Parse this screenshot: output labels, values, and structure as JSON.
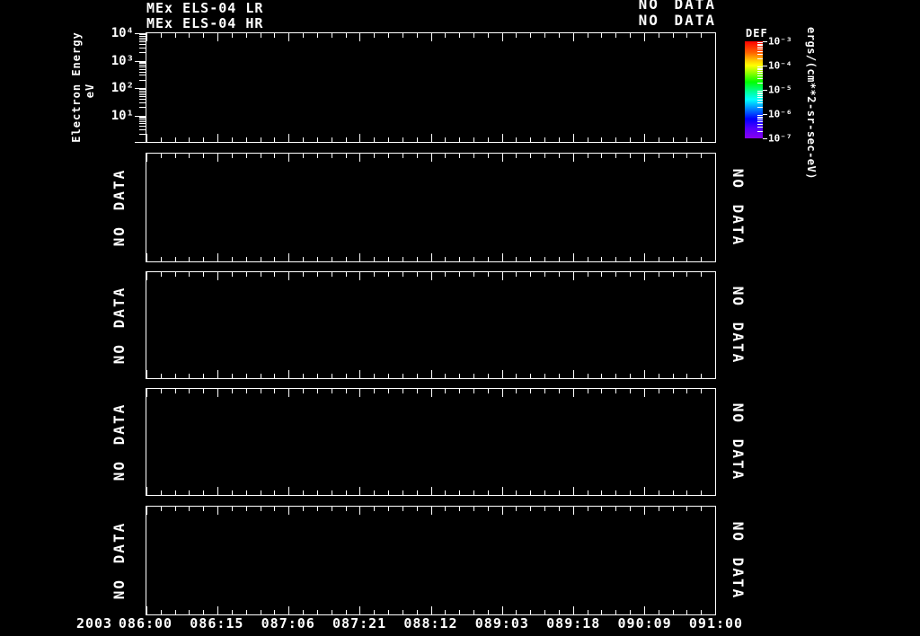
{
  "header": {
    "titles": [
      "MEx ELS-04 LR",
      "MEx ELS-04 HR"
    ],
    "statuses": [
      "NO DATA",
      "NO DATA"
    ]
  },
  "y_axis": {
    "label": "Electron Energy",
    "units": "eV",
    "tick_labels": [
      "10⁴",
      "10³",
      "10²",
      "10¹"
    ]
  },
  "x_axis": {
    "year": "2003",
    "tick_labels": [
      "086:00",
      "086:15",
      "087:06",
      "087:21",
      "088:12",
      "089:03",
      "089:18",
      "090:09",
      "091:00"
    ]
  },
  "colorbar": {
    "title": "DEF",
    "units": "ergs/(cm**2-sr-sec-eV)",
    "tick_labels": [
      "10⁻³",
      "10⁻⁴",
      "10⁻⁵",
      "10⁻⁶",
      "10⁻⁷"
    ]
  },
  "panels": [
    {
      "name": "spectrogram-panel-1",
      "status_left": "",
      "status_right": ""
    },
    {
      "name": "panel-2",
      "status_left": "NO DATA",
      "status_right": "NO DATA"
    },
    {
      "name": "panel-3",
      "status_left": "NO DATA",
      "status_right": "NO DATA"
    },
    {
      "name": "panel-4",
      "status_left": "NO DATA",
      "status_right": "NO DATA"
    },
    {
      "name": "panel-5",
      "status_left": "NO DATA",
      "status_right": "NO DATA"
    }
  ],
  "chart_data": [
    {
      "type": "heatmap",
      "title": "MEx ELS-04 LR",
      "subtitle": "MEx ELS-04 HR",
      "status": "NO DATA",
      "ylabel": "Electron Energy",
      "yunits": "eV",
      "yscale": "log",
      "ylim": [
        1,
        10000
      ],
      "ytick_labels": [
        "10^4",
        "10^3",
        "10^2",
        "10^1"
      ],
      "xtick_labels": [
        "086:00",
        "086:15",
        "087:06",
        "087:21",
        "088:12",
        "089:03",
        "089:18",
        "090:09",
        "091:00"
      ],
      "x_year": "2003",
      "x": [],
      "y": [],
      "values": [],
      "colorbar": {
        "title": "DEF",
        "units": "ergs/(cm**2-sr-sec-eV)",
        "scale": "log",
        "tick_labels": [
          "10^-3",
          "10^-4",
          "10^-5",
          "10^-6",
          "10^-7"
        ]
      },
      "legend": "none",
      "grid": false
    },
    {
      "type": "heatmap",
      "status": "NO DATA",
      "values": []
    },
    {
      "type": "heatmap",
      "status": "NO DATA",
      "values": []
    },
    {
      "type": "heatmap",
      "status": "NO DATA",
      "values": []
    },
    {
      "type": "heatmap",
      "status": "NO DATA",
      "values": [],
      "xtick_labels": [
        "086:00",
        "086:15",
        "087:06",
        "087:21",
        "088:12",
        "089:03",
        "089:18",
        "090:09",
        "091:00"
      ],
      "x_year": "2003"
    }
  ]
}
